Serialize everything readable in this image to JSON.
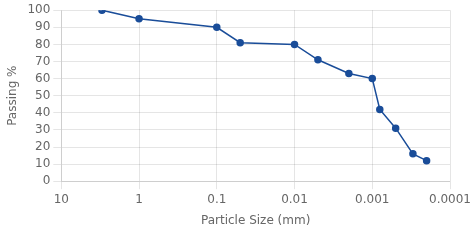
{
  "chart_data": {
    "type": "line",
    "x": [
      3,
      1,
      0.1,
      0.05,
      0.01,
      0.005,
      0.002,
      0.001,
      0.0008,
      0.0005,
      0.0003,
      0.0002
    ],
    "values": [
      100,
      95,
      90,
      81,
      80,
      71,
      63,
      60,
      42,
      31,
      16,
      12
    ],
    "xlabel": "Particle Size (mm)",
    "ylabel": "Passing %",
    "log": "x",
    "xlim": [
      10,
      0.0001
    ],
    "xticks": [
      10,
      1,
      0.1,
      0.01,
      0.001,
      0.0001
    ],
    "ylim": [
      0,
      100
    ],
    "yticks": [
      0,
      10,
      20,
      30,
      40,
      50,
      60,
      70,
      80,
      90,
      100
    ],
    "color": "#1a4d99",
    "marker": "circle",
    "grid": true
  }
}
